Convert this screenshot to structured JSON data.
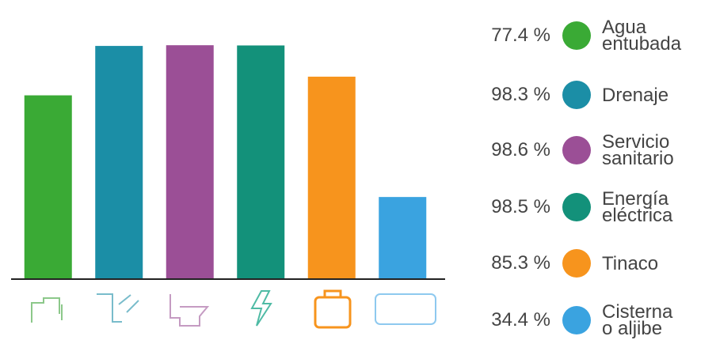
{
  "chart_data": {
    "type": "bar",
    "categories": [
      "Agua entubada",
      "Drenaje",
      "Servicio sanitario",
      "Energía eléctrica",
      "Tinaco",
      "Cisterna o aljibe"
    ],
    "series": [
      {
        "values": [
          77.4,
          98.3,
          98.6,
          98.5,
          85.3,
          34.4
        ],
        "value_labels": [
          "77.4 %",
          "98.3 %",
          "98.6 %",
          "98.5 %",
          "85.3 %",
          "34.4 %"
        ],
        "colors": [
          "#3aaa35",
          "#1b8ea6",
          "#9b4f96",
          "#13917a",
          "#f7941d",
          "#3aa3e0"
        ]
      }
    ],
    "ylim": [
      0,
      100
    ]
  }
}
